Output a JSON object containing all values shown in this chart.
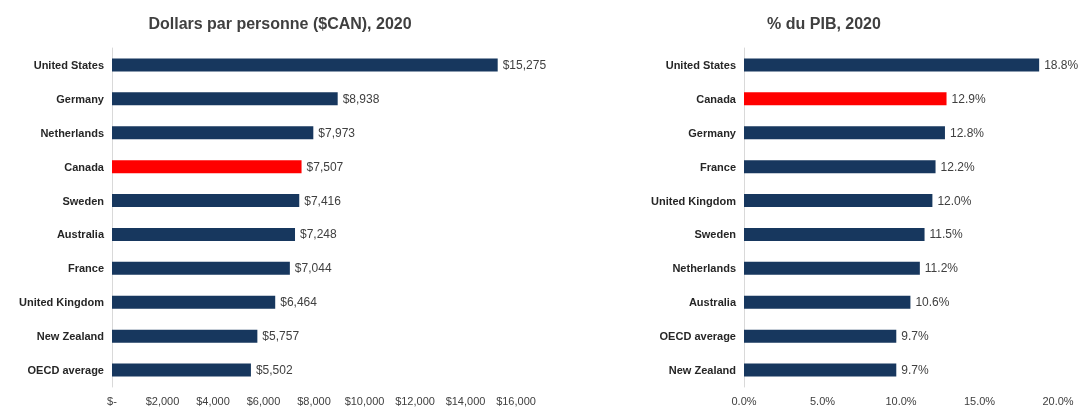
{
  "chart_data": [
    {
      "type": "bar",
      "orientation": "horizontal",
      "title": "Dollars par personne ($CAN), 2020",
      "categories": [
        "United States",
        "Germany",
        "Netherlands",
        "Canada",
        "Sweden",
        "Australia",
        "France",
        "United Kingdom",
        "New Zealand",
        "OECD average"
      ],
      "values": [
        15275,
        8938,
        7973,
        7507,
        7416,
        7248,
        7044,
        6464,
        5757,
        5502
      ],
      "colors": [
        "#17375e",
        "#17375e",
        "#17375e",
        "#ff0000",
        "#17375e",
        "#17375e",
        "#17375e",
        "#17375e",
        "#17375e",
        "#17375e"
      ],
      "value_labels": [
        "$15,275",
        "$8,938",
        "$7,973",
        "$7,507",
        "$7,416",
        "$7,248",
        "$7,044",
        "$6,464",
        "$5,757",
        "$5,502"
      ],
      "xlim": [
        0,
        16000
      ],
      "xticks": [
        {
          "value": 0,
          "label": "$-"
        },
        {
          "value": 2000,
          "label": "$2,000"
        },
        {
          "value": 4000,
          "label": "$4,000"
        },
        {
          "value": 6000,
          "label": "$6,000"
        },
        {
          "value": 8000,
          "label": "$8,000"
        },
        {
          "value": 10000,
          "label": "$10,000"
        },
        {
          "value": 12000,
          "label": "$12,000"
        },
        {
          "value": 14000,
          "label": "$14,000"
        },
        {
          "value": 16000,
          "label": "$16,000"
        }
      ],
      "grid": false
    },
    {
      "type": "bar",
      "orientation": "horizontal",
      "title": "% du PIB, 2020",
      "categories": [
        "United States",
        "Canada",
        "Germany",
        "France",
        "United Kingdom",
        "Sweden",
        "Netherlands",
        "Australia",
        "OECD average",
        "New Zealand"
      ],
      "values": [
        18.8,
        12.9,
        12.8,
        12.2,
        12.0,
        11.5,
        11.2,
        10.6,
        9.7,
        9.7
      ],
      "colors": [
        "#17375e",
        "#ff0000",
        "#17375e",
        "#17375e",
        "#17375e",
        "#17375e",
        "#17375e",
        "#17375e",
        "#17375e",
        "#17375e"
      ],
      "value_labels": [
        "18.8%",
        "12.9%",
        "12.8%",
        "12.2%",
        "12.0%",
        "11.5%",
        "11.2%",
        "10.6%",
        "9.7%",
        "9.7%"
      ],
      "xlim": [
        0,
        20
      ],
      "xticks": [
        {
          "value": 0,
          "label": "0.0%"
        },
        {
          "value": 5,
          "label": "5.0%"
        },
        {
          "value": 10,
          "label": "10.0%"
        },
        {
          "value": 15,
          "label": "15.0%"
        },
        {
          "value": 20,
          "label": "20.0%"
        }
      ],
      "grid": false
    }
  ]
}
